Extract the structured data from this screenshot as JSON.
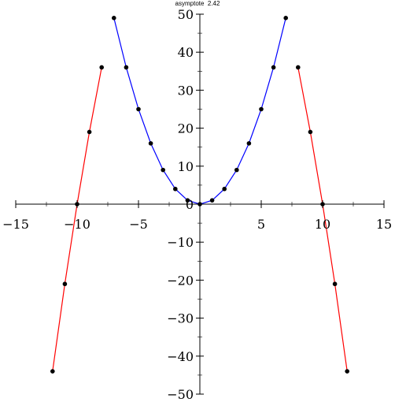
{
  "caption": "asymptote  2.42",
  "chart_data": {
    "type": "line",
    "title": "",
    "xlabel": "",
    "ylabel": "",
    "xlim": [
      -15,
      15
    ],
    "ylim": [
      -50,
      50
    ],
    "grid": false,
    "x_ticks": [
      -15,
      -10,
      -5,
      0,
      5,
      10,
      15
    ],
    "x_tick_labels": [
      "−15",
      "−10",
      "−5",
      "0",
      "5",
      "10",
      "15"
    ],
    "y_ticks": [
      -50,
      -40,
      -30,
      -20,
      -10,
      0,
      10,
      20,
      30,
      40,
      50
    ],
    "y_tick_labels": [
      "−50",
      "−40",
      "−30",
      "−20",
      "−10",
      "0",
      "10",
      "20",
      "30",
      "40",
      "50"
    ],
    "series": [
      {
        "color": "#0000ff",
        "x": [
          -7,
          -6,
          -5,
          -4,
          -3,
          -2,
          -1,
          0,
          1,
          2,
          3,
          4,
          5,
          6,
          7
        ],
        "y": [
          49,
          36,
          25,
          16,
          9,
          4,
          1,
          0,
          1,
          4,
          9,
          16,
          25,
          36,
          49
        ]
      },
      {
        "color": "#ff0000",
        "x": [
          -8,
          -9,
          -10,
          -11,
          -12
        ],
        "y": [
          36,
          19,
          0,
          -21,
          -44
        ]
      },
      {
        "color": "#ff0000",
        "x": [
          8,
          9,
          10,
          11,
          12
        ],
        "y": [
          36,
          19,
          0,
          -21,
          -44
        ]
      }
    ]
  }
}
